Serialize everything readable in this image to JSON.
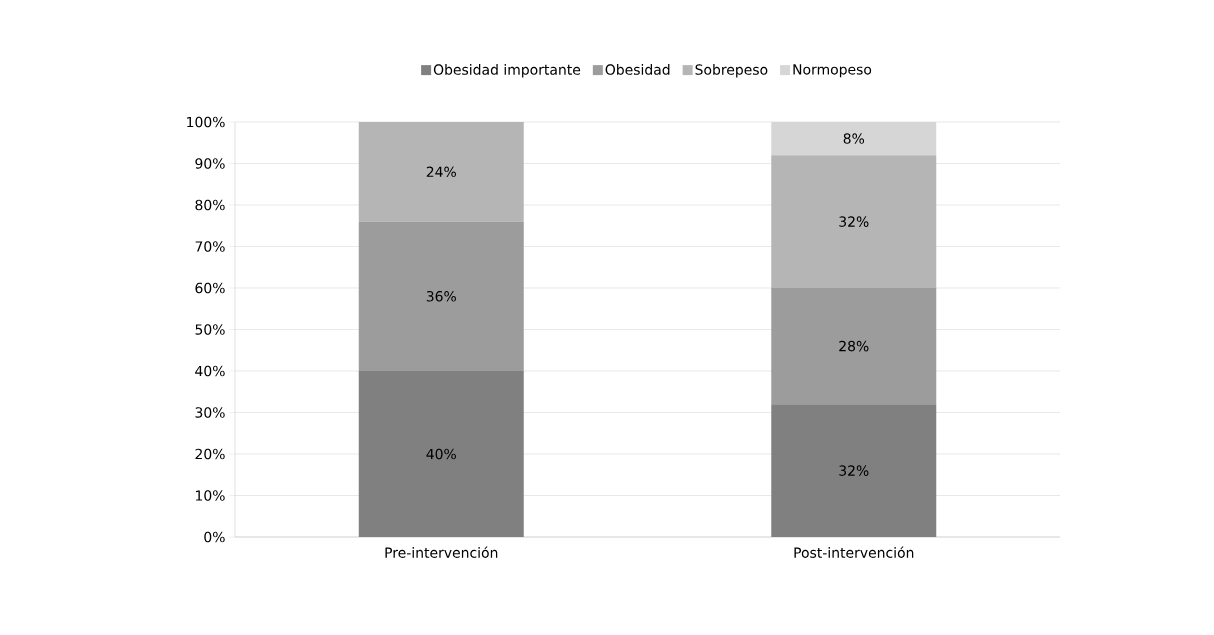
{
  "chart_data": {
    "type": "bar",
    "stacked": true,
    "categories": [
      "Pre-intervención",
      "Post-intervención"
    ],
    "series": [
      {
        "name": "Obesidad importante",
        "color": "#808080",
        "values": [
          40,
          32
        ],
        "value_labels": [
          "40%",
          "32%"
        ]
      },
      {
        "name": "Obesidad",
        "color": "#9c9c9c",
        "values": [
          36,
          28
        ],
        "value_labels": [
          "36%",
          "28%"
        ]
      },
      {
        "name": "Sobrepeso",
        "color": "#b5b5b5",
        "values": [
          24,
          32
        ],
        "value_labels": [
          "24%",
          "32%"
        ]
      },
      {
        "name": "Normopeso",
        "color": "#d6d6d6",
        "values": [
          0,
          8
        ],
        "value_labels": [
          null,
          "8%"
        ]
      }
    ],
    "ylim": [
      0,
      100
    ],
    "yticks": [
      {
        "value": 0,
        "label": "0%"
      },
      {
        "value": 10,
        "label": "10%"
      },
      {
        "value": 20,
        "label": "20%"
      },
      {
        "value": 30,
        "label": "30%"
      },
      {
        "value": 40,
        "label": "40%"
      },
      {
        "value": 50,
        "label": "50%"
      },
      {
        "value": 60,
        "label": "60%"
      },
      {
        "value": 70,
        "label": "70%"
      },
      {
        "value": 80,
        "label": "80%"
      },
      {
        "value": 90,
        "label": "90%"
      },
      {
        "value": 100,
        "label": "100%"
      }
    ],
    "grid": "y",
    "legend": "top"
  }
}
